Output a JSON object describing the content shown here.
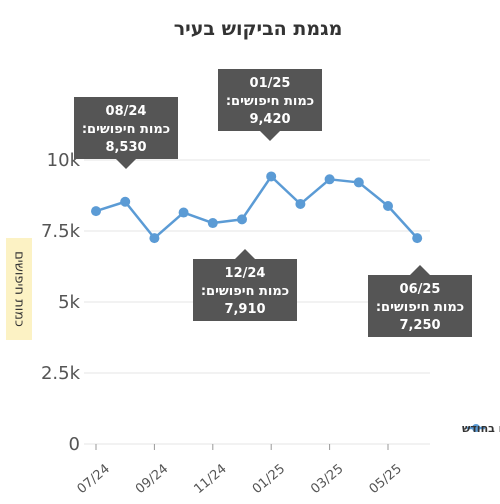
{
  "chart_data": {
    "type": "line",
    "title": "מגמת הביקוש בעיר",
    "ylabel": "כמות חיפושים",
    "xlabel": "",
    "ylim": [
      0,
      10000
    ],
    "grid": true,
    "legend_position": "right",
    "y_ticks": [
      {
        "value": 0,
        "label": "0"
      },
      {
        "value": 2500,
        "label": "2.5k"
      },
      {
        "value": 5000,
        "label": "5k"
      },
      {
        "value": 7500,
        "label": "7.5k"
      },
      {
        "value": 10000,
        "label": "10k"
      }
    ],
    "x": [
      "07/24",
      "08/24",
      "09/24",
      "10/24",
      "11/24",
      "12/24",
      "01/25",
      "02/25",
      "03/25",
      "04/25",
      "05/25",
      "06/25"
    ],
    "x_tick_labels": [
      "07/24",
      "09/24",
      "11/24",
      "01/25",
      "03/25",
      "05/25"
    ],
    "series": [
      {
        "name": "חיפושים בחודש",
        "color": "#5b9bd5",
        "values": [
          8200,
          8530,
          7250,
          8150,
          7780,
          7910,
          9420,
          8450,
          9320,
          9210,
          8380,
          7250
        ]
      }
    ],
    "annotations": [
      {
        "index": 1,
        "date": "08/24",
        "label": "כמות חיפושים:",
        "value": "8,530"
      },
      {
        "index": 6,
        "date": "01/25",
        "label": "כמות חיפושים:",
        "value": "9,420"
      },
      {
        "index": 5,
        "date": "12/24",
        "label": "כמות חיפושים:",
        "value": "7,910"
      },
      {
        "index": 11,
        "date": "06/25",
        "label": "כמות חיפושים:",
        "value": "7,250"
      }
    ]
  }
}
